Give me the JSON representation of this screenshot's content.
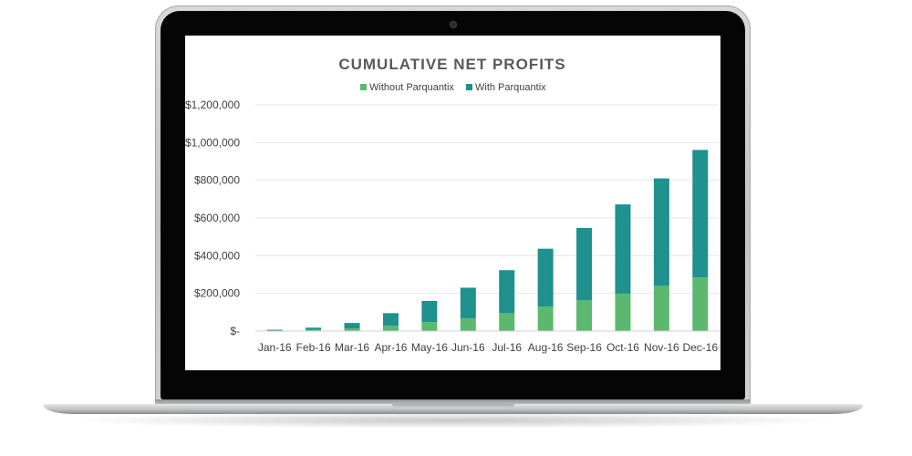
{
  "colors": {
    "without": "#5cb86e",
    "with": "#1f918e",
    "grid": "#e6e6e6",
    "axis": "#d0d0d0"
  },
  "chart_data": {
    "type": "bar",
    "stacked": true,
    "title": "CUMULATIVE NET PROFITS",
    "xlabel": "",
    "ylabel": "",
    "categories": [
      "Jan-16",
      "Feb-16",
      "Mar-16",
      "Apr-16",
      "May-16",
      "Jun-16",
      "Jul-16",
      "Aug-16",
      "Sep-16",
      "Oct-16",
      "Nov-16",
      "Dec-16"
    ],
    "series": [
      {
        "name": "Without Parquantix",
        "values": [
          2000,
          6000,
          13000,
          28000,
          48000,
          68000,
          95000,
          130000,
          163000,
          198000,
          240000,
          285000
        ]
      },
      {
        "name": "With Parquantix",
        "values": [
          5000,
          12000,
          30000,
          67000,
          112000,
          162000,
          228000,
          307000,
          384000,
          474000,
          570000,
          676000
        ]
      }
    ],
    "ylim": [
      0,
      1200000
    ],
    "yticks": [
      0,
      200000,
      400000,
      600000,
      800000,
      1000000,
      1200000
    ],
    "ytick_labels": [
      "$-",
      "$200,000",
      "$400,000",
      "$600,000",
      "$800,000",
      "$1,000,000",
      "$1,200,000"
    ],
    "grid": true,
    "legend": "top"
  }
}
